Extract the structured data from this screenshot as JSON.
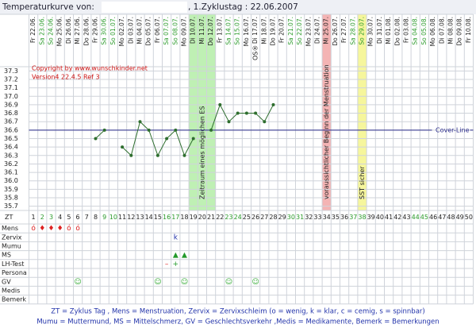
{
  "chart_data": {
    "type": "line",
    "title": "Temperaturkurve von:",
    "subtitle": ", 1.Zyklustag : 22.06.2007",
    "categories": [
      "Fr 22.06.",
      "Sa 23.06.",
      "So 24.06.",
      "Mo 25.06.",
      "Di 26.06.",
      "Mi 27.06.",
      "Do 28.06.",
      "Fr 29.06.",
      "Sa 30.06.",
      "So 01.07.",
      "Mo 02.07.",
      "Di 03.07.",
      "Mi 04.07.",
      "Do 05.07.",
      "Fr 06.07.",
      "Sa 07.07.",
      "So 08.07.",
      "Mo 09.07.",
      "Di 10.07.",
      "Mi 11.07.",
      "Do 12.07.",
      "Fr 13.07.",
      "Sa 14.07.",
      "So 15.07.",
      "Mo 16.07.",
      "Di 17.07.",
      "Mi 18.07.",
      "Do 19.07.",
      "Fr 20.07.",
      "Sa 21.07.",
      "So 22.07.",
      "Mo 23.07.",
      "Di 24.07.",
      "Mi 25.07.",
      "Do 26.07.",
      "Fr 27.07.",
      "Sa 28.07.",
      "So 29.07.",
      "Mo 30.07.",
      "Di 31.07.",
      "Mi 01.08.",
      "Do 02.08.",
      "Fr 03.08.",
      "Sa 04.08.",
      "So 05.08.",
      "Mo 06.08.",
      "Di 07.08.",
      "Mi 08.08.",
      "Do 09.08.",
      "Fr 10.08."
    ],
    "cycle_day_label": "ZT",
    "cycle_days": [
      1,
      2,
      3,
      4,
      5,
      6,
      7,
      8,
      9,
      10,
      11,
      12,
      13,
      14,
      15,
      16,
      17,
      18,
      19,
      20,
      21,
      22,
      23,
      24,
      25,
      26,
      27,
      28,
      29,
      30,
      31,
      32,
      33,
      34,
      35,
      36,
      37,
      38,
      39,
      40,
      41,
      42,
      43,
      44,
      45,
      46,
      47,
      48,
      49,
      50
    ],
    "weekend_days": [
      2,
      3,
      9,
      10,
      16,
      17,
      23,
      24,
      30,
      31,
      37,
      38,
      44,
      45
    ],
    "weekend_color": "#2a9a2a",
    "series": [
      {
        "name": "Temperatur",
        "color": "#2e6e2e",
        "values": [
          null,
          null,
          null,
          null,
          null,
          null,
          null,
          36.5,
          36.6,
          null,
          36.4,
          36.3,
          36.7,
          36.6,
          36.3,
          36.5,
          36.6,
          36.3,
          36.5,
          null,
          36.6,
          36.9,
          36.7,
          36.8,
          36.8,
          36.8,
          36.7,
          36.9,
          null,
          null,
          null,
          null,
          null,
          null,
          null,
          null,
          null,
          null,
          null,
          null,
          null,
          null,
          null,
          null,
          null,
          null,
          null,
          null,
          null,
          null
        ]
      }
    ],
    "ylim": [
      35.65,
      37.35
    ],
    "yticks": [
      35.7,
      35.8,
      35.9,
      {
        "value": 36,
        "label": "36.0"
      },
      36.1,
      36.2,
      36.3,
      36.4,
      36.5,
      36.6,
      36.7,
      36.8,
      36.9,
      {
        "value": 37,
        "label": "37.0"
      },
      37.1,
      37.2,
      37.3
    ],
    "grid": true,
    "cover_line": {
      "value": 36.6,
      "label": "Cover-Line",
      "color": "#2a2a8a"
    },
    "bands": [
      {
        "days": [
          19,
          21
        ],
        "color": "#bff0b4",
        "label": "Zeitraum eines möglichen ES"
      },
      {
        "days": [
          34,
          34
        ],
        "color": "#f4b4b4",
        "label": "voraussichtlicher Beginn der Menstruation"
      },
      {
        "days": [
          38,
          38
        ],
        "color": "#f6f69c",
        "label": "SST sicher"
      }
    ],
    "annotations": [
      {
        "text": "Copyright by www.wunschkinder.net",
        "color": "#cc1111"
      },
      {
        "text": "Version4 22.4.5 Ref 3",
        "color": "#cc1111"
      }
    ],
    "header_notes": [
      {
        "day": 26,
        "text": "OS®"
      }
    ],
    "rows": [
      {
        "name": "Mens",
        "marks": [
          {
            "day": 1,
            "text": "ó",
            "color": "#dd2222"
          },
          {
            "day": 2,
            "text": "♦",
            "color": "#dd2222"
          },
          {
            "day": 3,
            "text": "♦",
            "color": "#dd2222"
          },
          {
            "day": 4,
            "text": "♦",
            "color": "#dd2222"
          },
          {
            "day": 5,
            "text": "ó",
            "color": "#dd2222"
          },
          {
            "day": 6,
            "text": "ó",
            "color": "#dd2222"
          }
        ]
      },
      {
        "name": "Zervix",
        "marks": [
          {
            "day": 17,
            "text": "k",
            "color": "#2233aa"
          }
        ]
      },
      {
        "name": "Mumu",
        "marks": []
      },
      {
        "name": "MS",
        "marks": [
          {
            "day": 17,
            "text": "▲",
            "color": "#22992a"
          },
          {
            "day": 18,
            "text": "▲",
            "color": "#22992a"
          }
        ]
      },
      {
        "name": "LH-Test",
        "marks": [
          {
            "day": 16,
            "text": "–",
            "color": "#dd2222"
          },
          {
            "day": 17,
            "text": "+",
            "color": "#22992a"
          }
        ]
      },
      {
        "name": "Persona",
        "marks": []
      },
      {
        "name": "GV",
        "marks": [
          {
            "day": 6,
            "text": "☺",
            "color": "#33aa33"
          },
          {
            "day": 15,
            "text": "☺",
            "color": "#33aa33"
          },
          {
            "day": 18,
            "text": "☺",
            "color": "#33aa33"
          },
          {
            "day": 23,
            "text": "☺",
            "color": "#33aa33"
          },
          {
            "day": 26,
            "text": "☺",
            "color": "#33aa33"
          }
        ]
      },
      {
        "name": "Medis",
        "marks": []
      },
      {
        "name": "Bemerk",
        "marks": []
      }
    ],
    "footnotes": [
      "ZT = Zyklus Tag , Mens = Menstruation, Zervix = Zervixschleim (o = wenig, k = klar, c = cemig, s = spinnbar)",
      "Mumu = Muttermund, MS = Mittelschmerz, GV = Geschlechtsverkehr ,Medis = Medikamente, Bemerk = Bemerkungen"
    ]
  }
}
